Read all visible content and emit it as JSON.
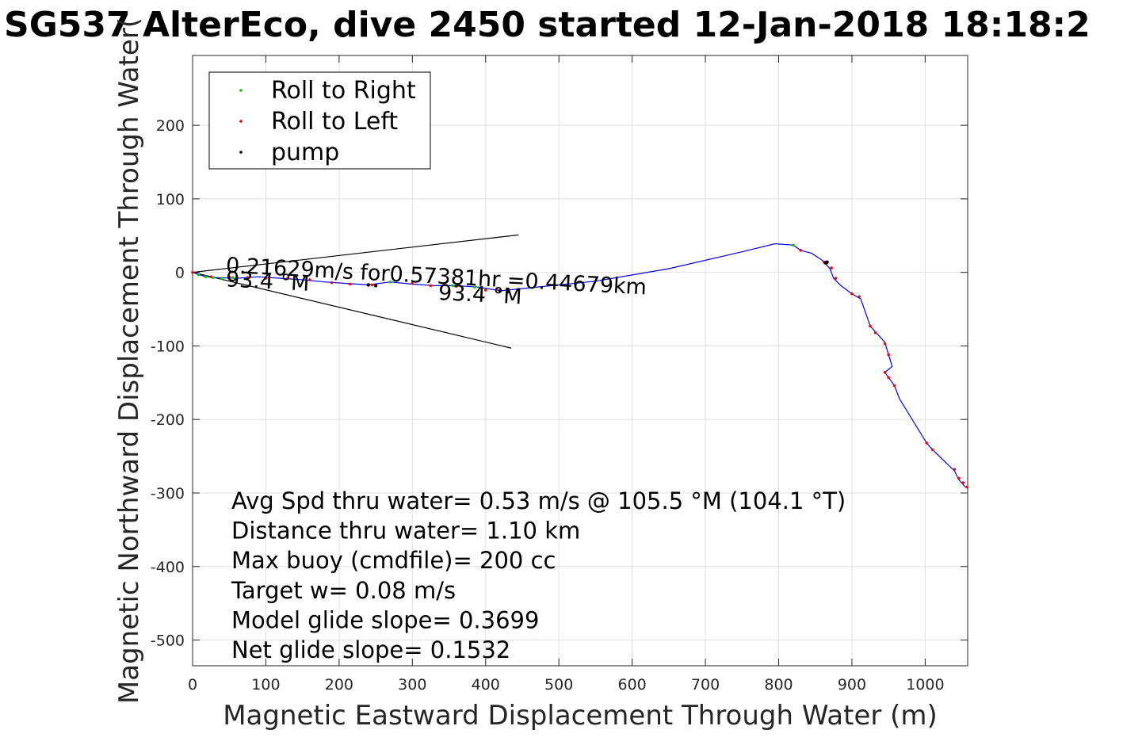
{
  "chart_data": {
    "type": "scatter",
    "title": "SG537 AlterEco, dive 2450 started 12-Jan-2018 18:18:2",
    "xlabel": "Magnetic Eastward Displacement Through Water (m)",
    "ylabel": "Magnetic Northward Displacement Through Water(",
    "xlim": [
      0,
      1058
    ],
    "ylim": [
      -535,
      295
    ],
    "xticks": [
      0,
      100,
      200,
      300,
      400,
      500,
      600,
      700,
      800,
      900,
      1000
    ],
    "yticks": [
      200,
      100,
      0,
      -100,
      -200,
      -300,
      -400,
      -500
    ],
    "grid": true,
    "legend": {
      "placement": "top-left",
      "entries": [
        {
          "label": "Roll to Right",
          "color": "#00cc00"
        },
        {
          "label": "Roll to Left",
          "color": "#ff0000"
        },
        {
          "label": "pump",
          "color": "#000000"
        }
      ]
    },
    "track": {
      "color": "#0000ff",
      "x": [
        0,
        15,
        30,
        60,
        90,
        120,
        150,
        180,
        210,
        240,
        270,
        300,
        330,
        360,
        390,
        420,
        450,
        550,
        650,
        750,
        795,
        820,
        830,
        845,
        860,
        870,
        875,
        885,
        900,
        912,
        925,
        935,
        945,
        950,
        955,
        945,
        950,
        958,
        965,
        1002,
        1010,
        1040,
        1046,
        1055
      ],
      "y": [
        0,
        -5,
        -7,
        -8,
        -6,
        -8,
        -10,
        -13,
        -15,
        -17,
        -13,
        -16,
        -18,
        -18,
        -20,
        -25,
        -22,
        -12,
        5,
        28,
        39,
        37,
        30,
        26,
        16,
        5,
        -8,
        -18,
        -29,
        -36,
        -73,
        -84,
        -95,
        -112,
        -128,
        -136,
        -143,
        -154,
        -172,
        -232,
        -241,
        -270,
        -282,
        -292
      ]
    },
    "roll_right": {
      "x": [
        8,
        18,
        28,
        40,
        55,
        270,
        355,
        385,
        820,
        866
      ],
      "y": [
        -3,
        -6,
        -7,
        -8,
        -7,
        -13,
        -18,
        -20,
        37,
        13
      ]
    },
    "roll_left": {
      "x": [
        0,
        25,
        50,
        75,
        100,
        130,
        160,
        190,
        215,
        245,
        300,
        325,
        360,
        400,
        415,
        430,
        830,
        862,
        872,
        878,
        900,
        910,
        925,
        932,
        945,
        950,
        945,
        950,
        958,
        1002,
        1010,
        1040,
        1046,
        1052,
        1057
      ],
      "y": [
        0,
        -6,
        -6,
        -7,
        -8,
        -8,
        -10,
        -14,
        -16,
        -17,
        -15,
        -18,
        -19,
        -24,
        -23,
        -27,
        30,
        14,
        6,
        -8,
        -29,
        -33,
        -73,
        -82,
        -97,
        -112,
        -136,
        -143,
        -154,
        -232,
        -241,
        -268,
        -280,
        -286,
        -292
      ]
    },
    "pump": {
      "x": [
        240,
        250,
        420,
        430,
        864,
        866
      ],
      "y": [
        -17,
        -18,
        -25,
        -26,
        13,
        14
      ]
    },
    "heading_lines": [
      {
        "x": [
          0,
          445
        ],
        "y": [
          0,
          51
        ]
      },
      {
        "x": [
          0,
          435
        ],
        "y": [
          0,
          -103
        ]
      }
    ],
    "annotations": [
      {
        "text": "0.21629m/s for0.57381hr =0.44679km",
        "x": 45,
        "y": 0,
        "angle": 3
      },
      {
        "text": "93.4 °M",
        "x": 45,
        "y": -19,
        "angle": 3
      },
      {
        "text": "93.4 °M",
        "x": 335,
        "y": -37,
        "angle": 3
      }
    ],
    "stats": [
      "Avg Spd thru water=  0.53 m/s @ 105.5 °M (104.1 °T)",
      "Distance thru water=  1.10 km",
      "Max buoy (cmdfile)= 200 cc",
      "Target w= 0.08 m/s",
      "Model glide slope= 0.3699",
      "Net glide slope= 0.1532"
    ]
  }
}
